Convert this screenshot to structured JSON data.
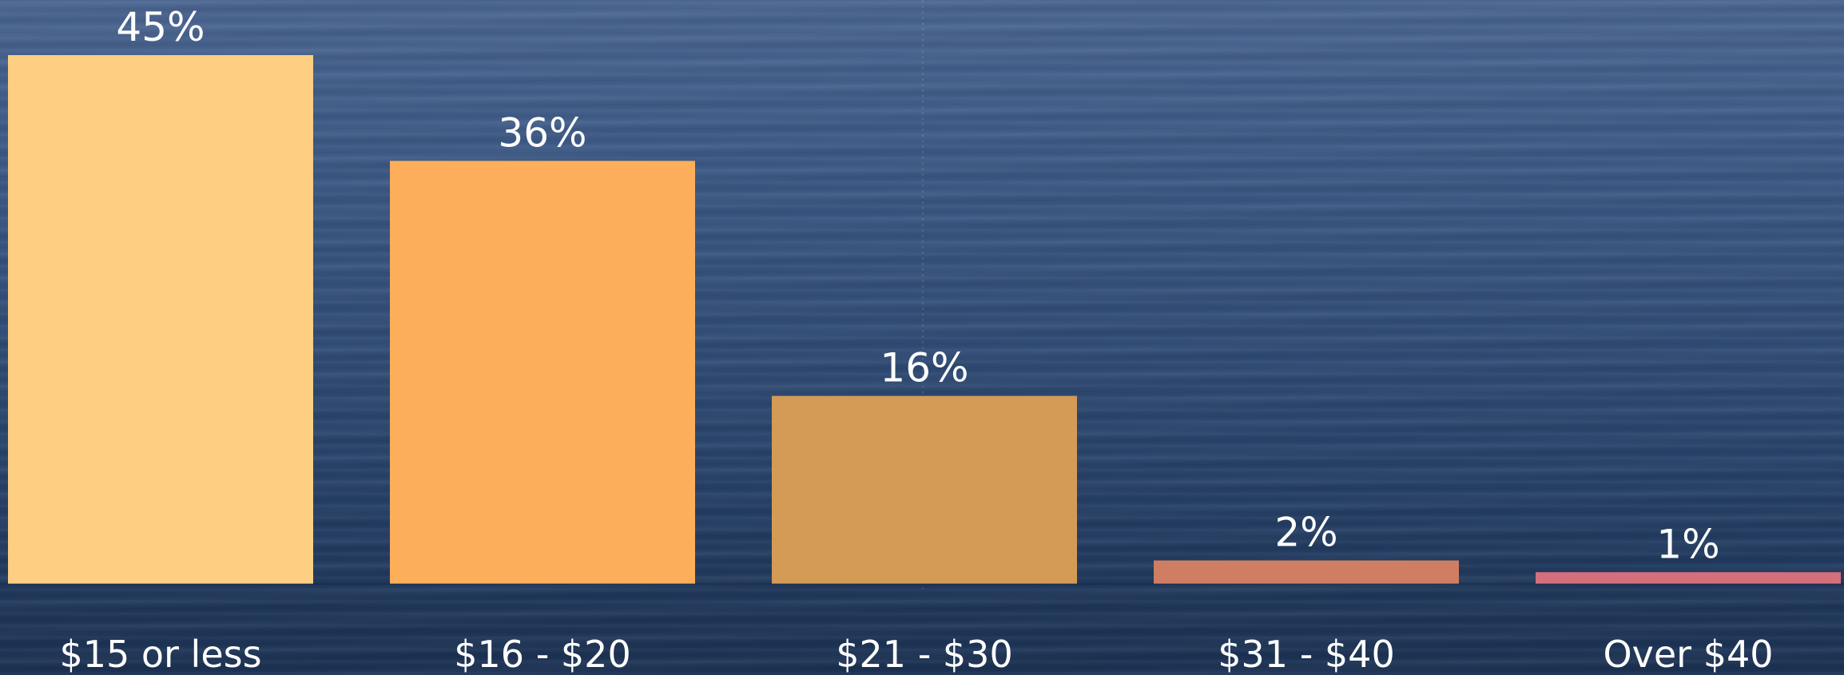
{
  "chart_data": {
    "type": "bar",
    "categories": [
      "$15 or less",
      "$16 - $20",
      "$21 - $30",
      "$31 - $40",
      "Over $40"
    ],
    "values": [
      45,
      36,
      16,
      2,
      1
    ],
    "value_labels": [
      "45%",
      "36%",
      "16%",
      "2%",
      "1%"
    ],
    "colors": [
      "#fecf82",
      "#fdae5a",
      "#d49b56",
      "#d07e63",
      "#d4707c"
    ],
    "ylim": [
      0,
      45
    ],
    "grid": false,
    "legend": "none",
    "title": "",
    "xlabel": "",
    "ylabel": ""
  }
}
